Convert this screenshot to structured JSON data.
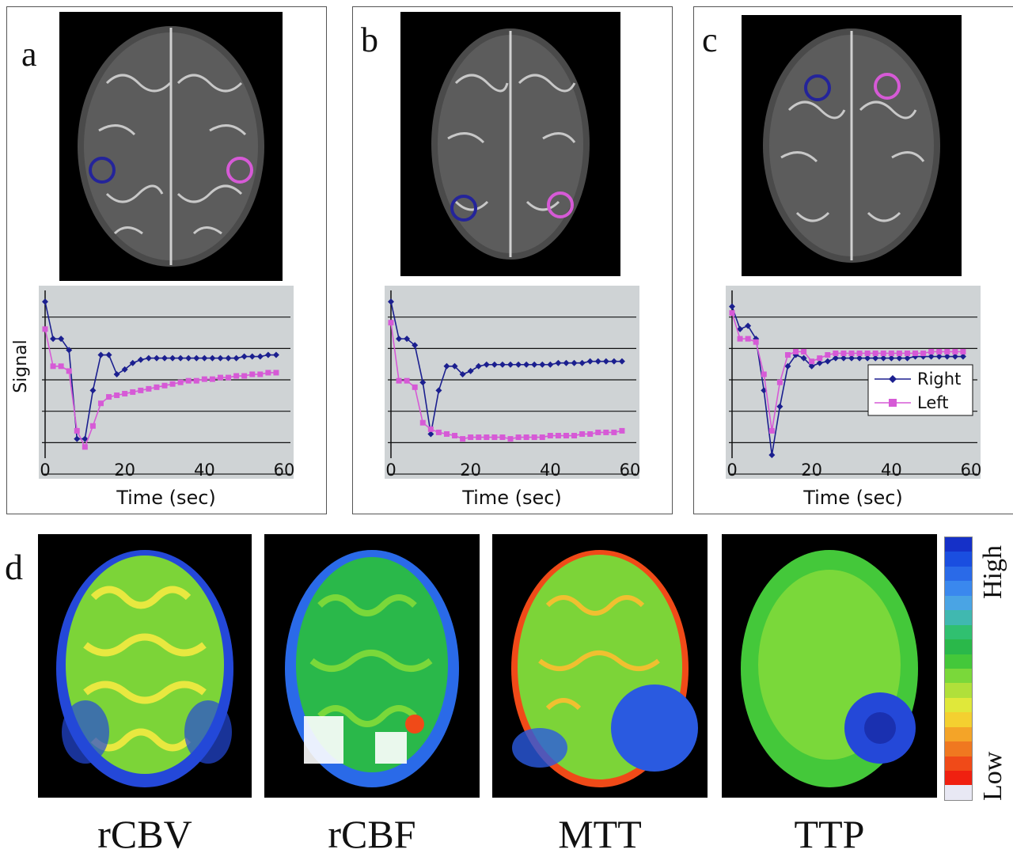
{
  "panels": [
    {
      "letter": "a"
    },
    {
      "letter": "b"
    },
    {
      "letter": "c"
    }
  ],
  "chart_data": [
    {
      "type": "line",
      "panel": "a",
      "xlabel": "Time (sec)",
      "ylabel": "Signal",
      "xlim": [
        0,
        60
      ],
      "x_ticks": [
        0,
        20,
        40,
        60
      ],
      "grid": "horizontal",
      "series": [
        {
          "name": "Right",
          "color": "#1b1f8f",
          "marker": "diamond",
          "x": [
            0,
            2,
            4,
            6,
            8,
            10,
            12,
            14,
            16,
            18,
            20,
            22,
            24,
            26,
            28,
            30,
            32,
            34,
            36,
            38,
            40,
            42,
            44,
            46,
            48,
            50,
            52,
            54,
            56,
            58
          ],
          "y": [
            0.95,
            0.72,
            0.72,
            0.65,
            0.1,
            0.1,
            0.4,
            0.62,
            0.62,
            0.5,
            0.53,
            0.57,
            0.59,
            0.6,
            0.6,
            0.6,
            0.6,
            0.6,
            0.6,
            0.6,
            0.6,
            0.6,
            0.6,
            0.6,
            0.6,
            0.61,
            0.61,
            0.61,
            0.62,
            0.62
          ]
        },
        {
          "name": "Left",
          "color": "#d65ad6",
          "marker": "square",
          "x": [
            0,
            2,
            4,
            6,
            8,
            10,
            12,
            14,
            16,
            18,
            20,
            22,
            24,
            26,
            28,
            30,
            32,
            34,
            36,
            38,
            40,
            42,
            44,
            46,
            48,
            50,
            52,
            54,
            56,
            58
          ],
          "y": [
            0.78,
            0.55,
            0.55,
            0.52,
            0.15,
            0.05,
            0.18,
            0.32,
            0.36,
            0.37,
            0.38,
            0.39,
            0.4,
            0.41,
            0.42,
            0.43,
            0.44,
            0.45,
            0.46,
            0.46,
            0.47,
            0.47,
            0.48,
            0.48,
            0.49,
            0.49,
            0.5,
            0.5,
            0.51,
            0.51
          ]
        }
      ]
    },
    {
      "type": "line",
      "panel": "b",
      "xlabel": "Time (sec)",
      "xlim": [
        0,
        60
      ],
      "x_ticks": [
        0,
        20,
        40,
        60
      ],
      "grid": "horizontal",
      "series": [
        {
          "name": "Right",
          "color": "#1b1f8f",
          "marker": "diamond",
          "x": [
            0,
            2,
            4,
            6,
            8,
            10,
            12,
            14,
            16,
            18,
            20,
            22,
            24,
            26,
            28,
            30,
            32,
            34,
            36,
            38,
            40,
            42,
            44,
            46,
            48,
            50,
            52,
            54,
            56,
            58
          ],
          "y": [
            0.95,
            0.72,
            0.72,
            0.68,
            0.45,
            0.13,
            0.4,
            0.55,
            0.55,
            0.5,
            0.52,
            0.55,
            0.56,
            0.56,
            0.56,
            0.56,
            0.56,
            0.56,
            0.56,
            0.56,
            0.56,
            0.57,
            0.57,
            0.57,
            0.57,
            0.58,
            0.58,
            0.58,
            0.58,
            0.58
          ]
        },
        {
          "name": "Left",
          "color": "#d65ad6",
          "marker": "square",
          "x": [
            0,
            2,
            4,
            6,
            8,
            10,
            12,
            14,
            16,
            18,
            20,
            22,
            24,
            26,
            28,
            30,
            32,
            34,
            36,
            38,
            40,
            42,
            44,
            46,
            48,
            50,
            52,
            54,
            56,
            58
          ],
          "y": [
            0.82,
            0.46,
            0.46,
            0.42,
            0.2,
            0.16,
            0.14,
            0.13,
            0.12,
            0.1,
            0.11,
            0.11,
            0.11,
            0.11,
            0.11,
            0.1,
            0.11,
            0.11,
            0.11,
            0.11,
            0.12,
            0.12,
            0.12,
            0.12,
            0.13,
            0.13,
            0.14,
            0.14,
            0.14,
            0.15
          ]
        }
      ]
    },
    {
      "type": "line",
      "panel": "c",
      "xlabel": "Time (sec)",
      "xlim": [
        0,
        60
      ],
      "x_ticks": [
        0,
        20,
        40,
        60
      ],
      "grid": "horizontal",
      "legend": "right",
      "series": [
        {
          "name": "Right",
          "color": "#1b1f8f",
          "marker": "diamond",
          "x": [
            0,
            2,
            4,
            6,
            8,
            10,
            12,
            14,
            16,
            18,
            20,
            22,
            24,
            26,
            28,
            30,
            32,
            34,
            36,
            38,
            40,
            42,
            44,
            46,
            48,
            50,
            52,
            54,
            56,
            58
          ],
          "y": [
            0.92,
            0.78,
            0.8,
            0.72,
            0.4,
            0.0,
            0.3,
            0.55,
            0.62,
            0.6,
            0.55,
            0.57,
            0.58,
            0.6,
            0.6,
            0.6,
            0.6,
            0.6,
            0.6,
            0.6,
            0.6,
            0.6,
            0.6,
            0.61,
            0.61,
            0.61,
            0.61,
            0.61,
            0.61,
            0.61
          ]
        },
        {
          "name": "Left",
          "color": "#d65ad6",
          "marker": "square",
          "x": [
            0,
            2,
            4,
            6,
            8,
            10,
            12,
            14,
            16,
            18,
            20,
            22,
            24,
            26,
            28,
            30,
            32,
            34,
            36,
            38,
            40,
            42,
            44,
            46,
            48,
            50,
            52,
            54,
            56,
            58
          ],
          "y": [
            0.88,
            0.72,
            0.72,
            0.7,
            0.5,
            0.15,
            0.45,
            0.62,
            0.64,
            0.64,
            0.58,
            0.6,
            0.62,
            0.63,
            0.63,
            0.63,
            0.63,
            0.63,
            0.63,
            0.63,
            0.63,
            0.63,
            0.63,
            0.63,
            0.63,
            0.64,
            0.64,
            0.64,
            0.64,
            0.64
          ]
        }
      ]
    }
  ],
  "maps": {
    "letter": "d",
    "labels": [
      "rCBV",
      "rCBF",
      "MTT",
      "TTP"
    ],
    "colorbar": {
      "high": "High",
      "low": "Low",
      "colors": [
        "#1530c8",
        "#1a4ee0",
        "#2a6ae8",
        "#3a88ee",
        "#4aa4e4",
        "#40b8b0",
        "#30c070",
        "#2ab84a",
        "#44c83a",
        "#7ad83a",
        "#b0e03a",
        "#e0e83a",
        "#f4d030",
        "#f4a428",
        "#f07820",
        "#f04a18",
        "#f02010",
        "#e8e8f4"
      ]
    }
  }
}
